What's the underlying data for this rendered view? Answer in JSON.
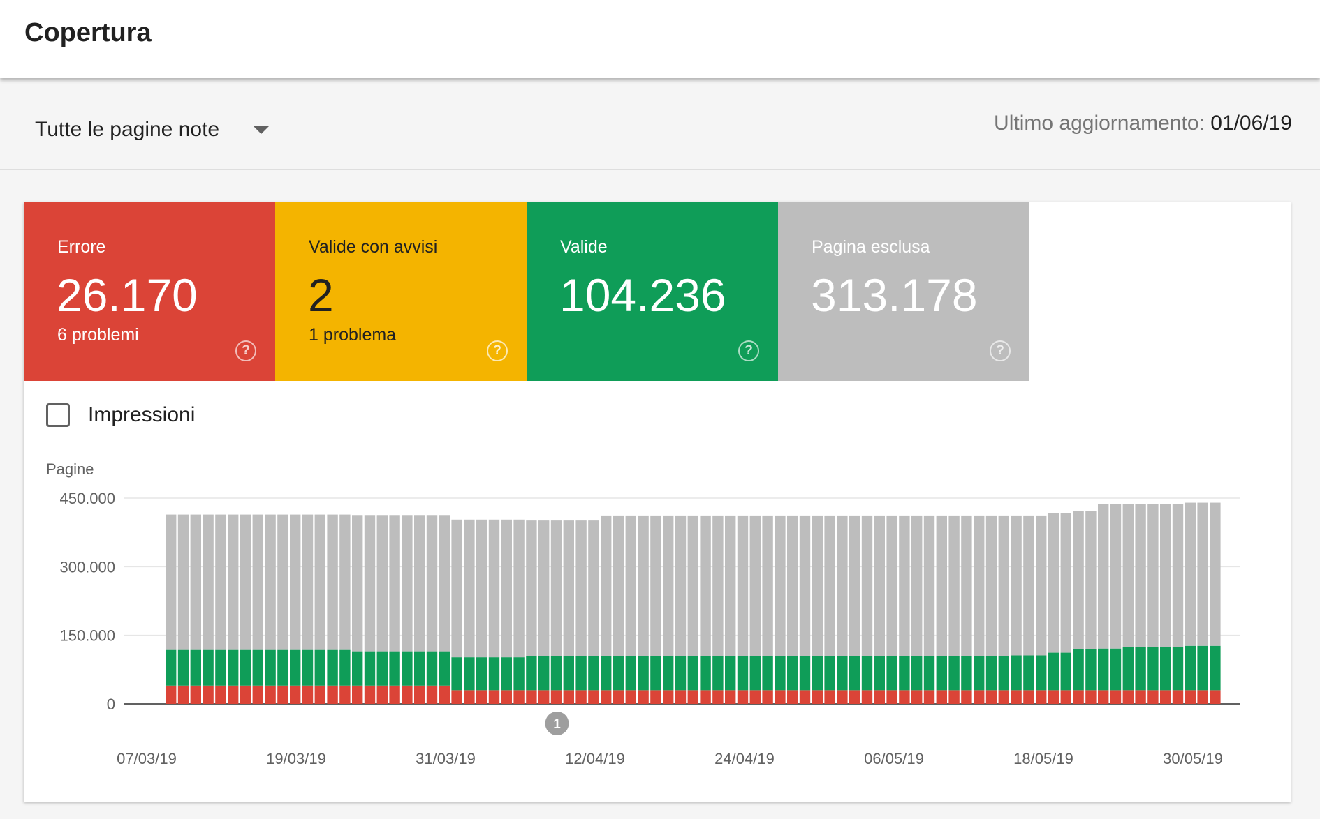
{
  "header": {
    "title": "Copertura"
  },
  "filter": {
    "selected": "Tutte le pagine note"
  },
  "last_update": {
    "label": "Ultimo aggiornamento:",
    "date": "01/06/19"
  },
  "tiles": {
    "error": {
      "label": "Errore",
      "value": "26.170",
      "sub": "6 problemi",
      "help": "?"
    },
    "warning": {
      "label": "Valide con avvisi",
      "value": "2",
      "sub": "1 problema",
      "help": "?"
    },
    "valid": {
      "label": "Valide",
      "value": "104.236",
      "sub": "",
      "help": "?"
    },
    "excluded": {
      "label": "Pagina esclusa",
      "value": "313.178",
      "sub": "",
      "help": "?"
    }
  },
  "impressions": {
    "label": "Impressioni",
    "checked": false
  },
  "colors": {
    "error": "#db4437",
    "warning": "#f4b400",
    "valid": "#0f9d58",
    "excluded": "#bdbdbd"
  },
  "chart_data": {
    "type": "bar",
    "stacked": true,
    "ylabel": "Pagine",
    "ylim": [
      0,
      450000
    ],
    "yticks": [
      0,
      150000,
      300000,
      450000
    ],
    "ytick_labels": [
      "0",
      "150.000",
      "300.000",
      "450.000"
    ],
    "xtick_labels": [
      "07/03/19",
      "19/03/19",
      "31/03/19",
      "12/04/19",
      "24/04/19",
      "06/05/19",
      "18/05/19",
      "30/05/19"
    ],
    "annotation": {
      "label": "1",
      "date": "10/04/19"
    },
    "segments": [
      {
        "name": "Errore",
        "color": "#db4437",
        "runs": [
          [
            23,
            40000
          ],
          [
            62,
            30000
          ]
        ]
      },
      {
        "name": "Valide",
        "color": "#0f9d58",
        "runs": [
          [
            15,
            78000
          ],
          [
            8,
            75000
          ],
          [
            6,
            72000
          ],
          [
            6,
            75000
          ],
          [
            33,
            74000
          ],
          [
            3,
            76000
          ],
          [
            2,
            82000
          ],
          [
            2,
            89000
          ],
          [
            2,
            91000
          ],
          [
            2,
            94000
          ],
          [
            3,
            95000
          ],
          [
            3,
            97000
          ],
          [
            2,
            103000
          ]
        ]
      },
      {
        "name": "Pagina esclusa",
        "color": "#bdbdbd",
        "runs": [
          [
            15,
            296000
          ],
          [
            8,
            298000
          ],
          [
            6,
            301000
          ],
          [
            6,
            296000
          ],
          [
            33,
            308000
          ],
          [
            3,
            306000
          ],
          [
            2,
            305000
          ],
          [
            2,
            303000
          ],
          [
            2,
            316000
          ],
          [
            2,
            313000
          ],
          [
            3,
            312000
          ],
          [
            3,
            313000
          ],
          [
            2,
            307000
          ]
        ]
      }
    ]
  }
}
